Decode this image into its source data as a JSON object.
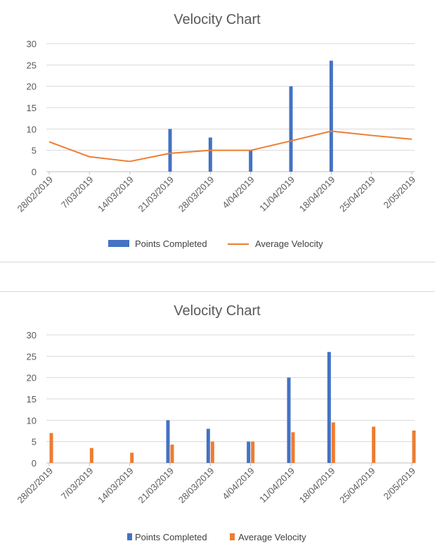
{
  "colors": {
    "points": "#4472c4",
    "velocity": "#ed7d31",
    "grid": "#d9d9d9",
    "axis": "#bfbfbf"
  },
  "chart_data": [
    {
      "type": "bar+line",
      "title": "Velocity Chart",
      "categories": [
        "28/02/2019",
        "7/03/2019",
        "14/03/2019",
        "21/03/2019",
        "28/03/2019",
        "4/04/2019",
        "11/04/2019",
        "18/04/2019",
        "25/04/2019",
        "2/05/2019"
      ],
      "ylim": [
        0,
        30
      ],
      "yticks": [
        "0",
        "5",
        "10",
        "15",
        "20",
        "25",
        "30"
      ],
      "grid": true,
      "legend_position": "bottom",
      "series": [
        {
          "name": "Points Completed",
          "kind": "bar",
          "values": [
            null,
            null,
            null,
            10,
            8,
            5,
            20,
            26,
            null,
            null
          ]
        },
        {
          "name": "Average Velocity",
          "kind": "line",
          "values": [
            7,
            3.5,
            2.4,
            4.3,
            5,
            5,
            7.2,
            9.5,
            8.5,
            7.6
          ]
        }
      ]
    },
    {
      "type": "bar",
      "title": "Velocity Chart",
      "categories": [
        "28/02/2019",
        "7/03/2019",
        "14/03/2019",
        "21/03/2019",
        "28/03/2019",
        "4/04/2019",
        "11/04/2019",
        "18/04/2019",
        "25/04/2019",
        "2/05/2019"
      ],
      "ylim": [
        0,
        30
      ],
      "yticks": [
        "0",
        "5",
        "10",
        "15",
        "20",
        "25",
        "30"
      ],
      "grid": true,
      "legend_position": "bottom",
      "series": [
        {
          "name": "Points Completed",
          "kind": "bar",
          "values": [
            null,
            null,
            null,
            10,
            8,
            5,
            20,
            26,
            null,
            null
          ]
        },
        {
          "name": "Average Velocity",
          "kind": "bar",
          "values": [
            7,
            3.5,
            2.4,
            4.3,
            5,
            5,
            7.2,
            9.5,
            8.5,
            7.6
          ]
        }
      ]
    }
  ]
}
